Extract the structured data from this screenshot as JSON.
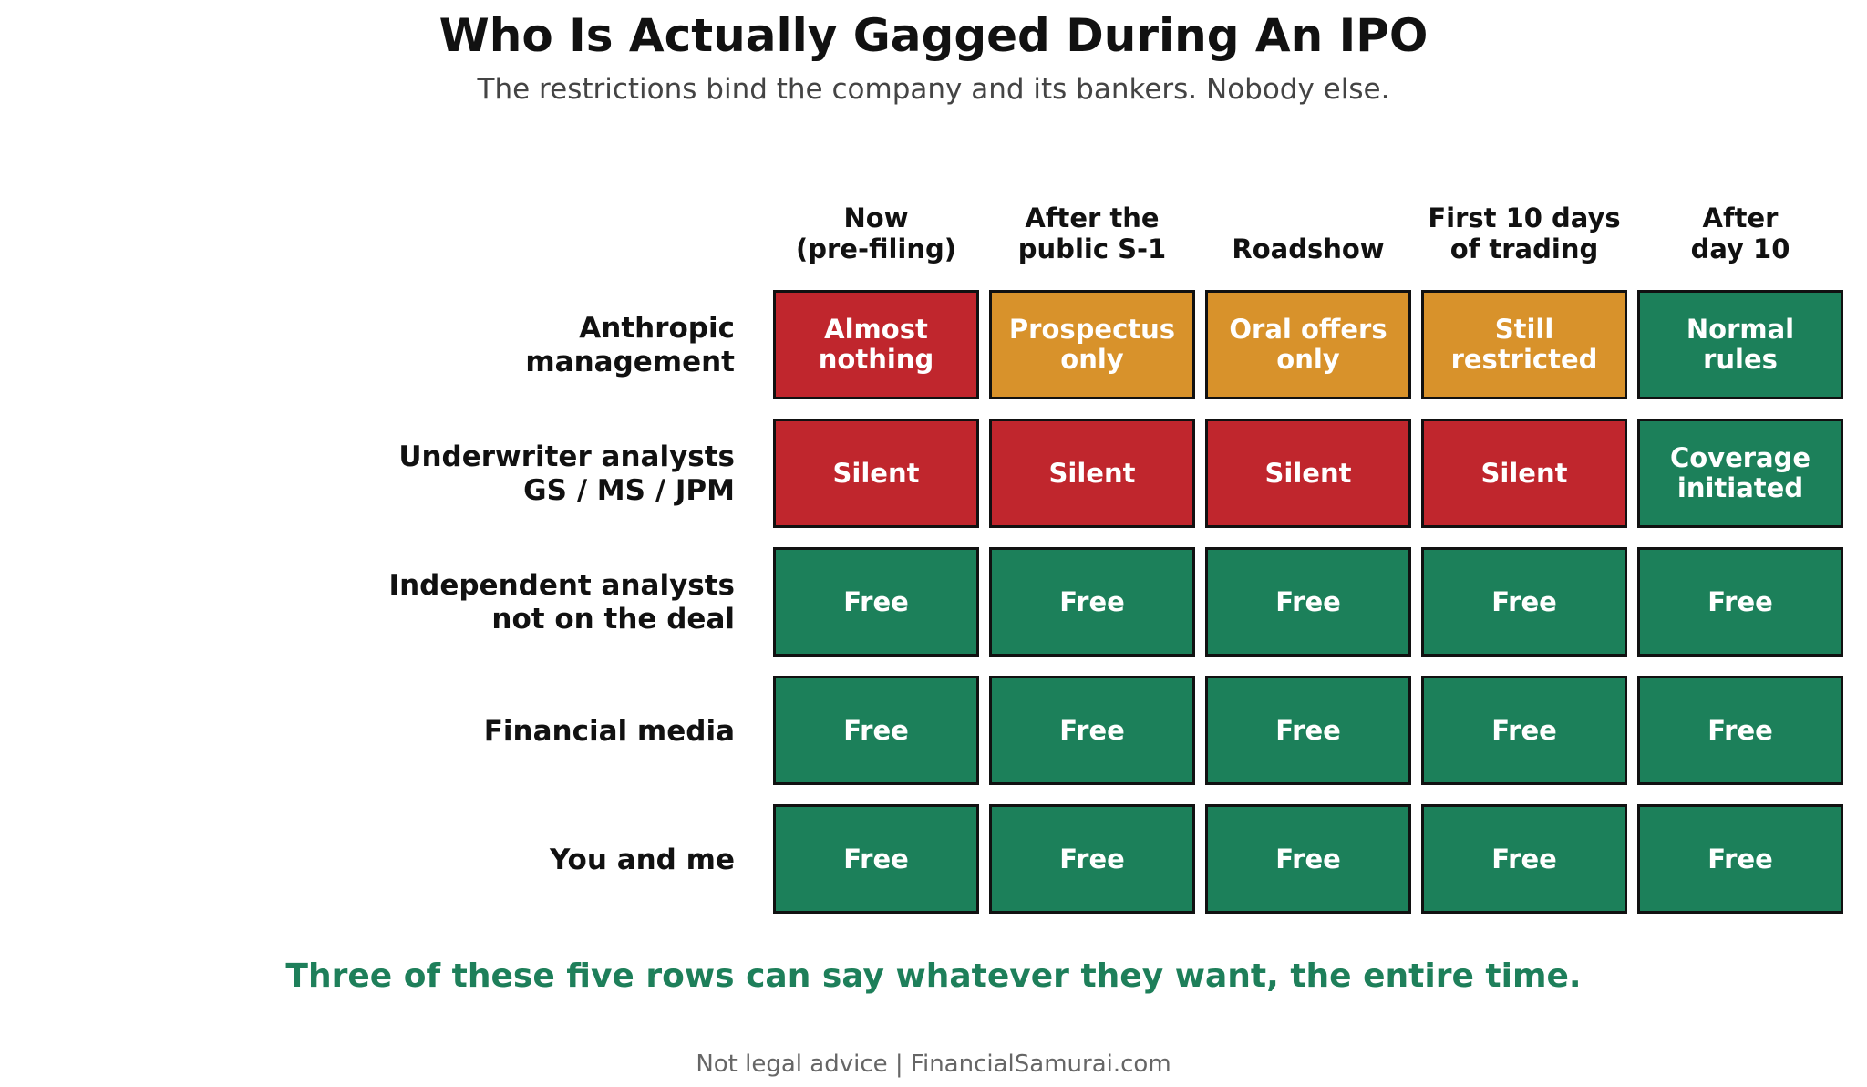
{
  "chart_data": {
    "type": "table",
    "title": "Who Is Actually Gagged During An IPO",
    "subtitle": "The restrictions bind the company and its bankers. Nobody else.",
    "columns": [
      [
        "Now",
        "(pre-filing)"
      ],
      [
        "After the",
        "public S-1"
      ],
      [
        "Roadshow"
      ],
      [
        "First 10 days",
        "of trading"
      ],
      [
        "After",
        "day 10"
      ]
    ],
    "rows": [
      {
        "label": [
          "Anthropic",
          "management"
        ],
        "cells": [
          {
            "text": [
              "Almost",
              "nothing"
            ],
            "status": "restricted"
          },
          {
            "text": [
              "Prospectus",
              "only"
            ],
            "status": "limited"
          },
          {
            "text": [
              "Oral offers",
              "only"
            ],
            "status": "limited"
          },
          {
            "text": [
              "Still",
              "restricted"
            ],
            "status": "limited"
          },
          {
            "text": [
              "Normal",
              "rules"
            ],
            "status": "free"
          }
        ]
      },
      {
        "label": [
          "Underwriter analysts",
          "GS / MS / JPM"
        ],
        "cells": [
          {
            "text": [
              "Silent"
            ],
            "status": "restricted"
          },
          {
            "text": [
              "Silent"
            ],
            "status": "restricted"
          },
          {
            "text": [
              "Silent"
            ],
            "status": "restricted"
          },
          {
            "text": [
              "Silent"
            ],
            "status": "restricted"
          },
          {
            "text": [
              "Coverage",
              "initiated"
            ],
            "status": "free"
          }
        ]
      },
      {
        "label": [
          "Independent analysts",
          "not on the deal"
        ],
        "cells": [
          {
            "text": [
              "Free"
            ],
            "status": "free"
          },
          {
            "text": [
              "Free"
            ],
            "status": "free"
          },
          {
            "text": [
              "Free"
            ],
            "status": "free"
          },
          {
            "text": [
              "Free"
            ],
            "status": "free"
          },
          {
            "text": [
              "Free"
            ],
            "status": "free"
          }
        ]
      },
      {
        "label": [
          "Financial media"
        ],
        "cells": [
          {
            "text": [
              "Free"
            ],
            "status": "free"
          },
          {
            "text": [
              "Free"
            ],
            "status": "free"
          },
          {
            "text": [
              "Free"
            ],
            "status": "free"
          },
          {
            "text": [
              "Free"
            ],
            "status": "free"
          },
          {
            "text": [
              "Free"
            ],
            "status": "free"
          }
        ]
      },
      {
        "label": [
          "You and me"
        ],
        "cells": [
          {
            "text": [
              "Free"
            ],
            "status": "free"
          },
          {
            "text": [
              "Free"
            ],
            "status": "free"
          },
          {
            "text": [
              "Free"
            ],
            "status": "free"
          },
          {
            "text": [
              "Free"
            ],
            "status": "free"
          },
          {
            "text": [
              "Free"
            ],
            "status": "free"
          }
        ]
      }
    ],
    "colors": {
      "restricted": "#c0262d",
      "limited": "#d8922b",
      "free": "#1c805a"
    },
    "takeaway": "Three of these five rows can say whatever they want, the entire time.",
    "footer": "Not legal advice | FinancialSamurai.com"
  }
}
